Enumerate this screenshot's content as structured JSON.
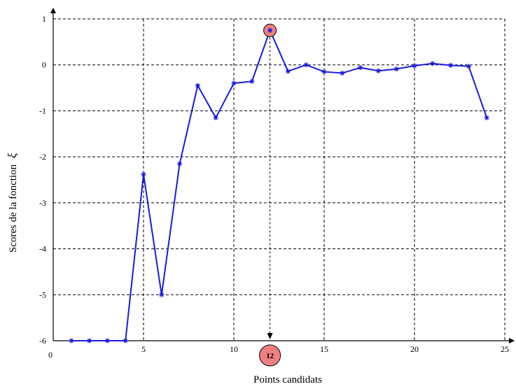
{
  "chart_data": {
    "type": "line",
    "title": "",
    "xlabel": "Points candidats",
    "ylabel": "Scores de la fonction",
    "ylabel_symbol": "ξ",
    "xlim": [
      0,
      25
    ],
    "ylim": [
      -6,
      1
    ],
    "x_ticks": [
      0,
      5,
      10,
      15,
      20,
      25
    ],
    "x_tick_labels": [
      "0",
      "5",
      "10",
      "15",
      "20",
      "25"
    ],
    "y_ticks": [
      1,
      0,
      -1,
      -2,
      -3,
      -4,
      -5,
      -6
    ],
    "y_tick_labels": [
      "1",
      "0",
      "-1",
      "-2",
      "-3",
      "-4",
      "-5",
      "-6"
    ],
    "grid": true,
    "series": [
      {
        "x": [
          1,
          2,
          3,
          4,
          5,
          6,
          7,
          8,
          9,
          10,
          11,
          12,
          13,
          14,
          15,
          16,
          17,
          18,
          19,
          20,
          21,
          22,
          23,
          24
        ],
        "y": [
          -6,
          -6,
          -6,
          -6,
          -2.38,
          -5,
          -2.15,
          -0.45,
          -1.15,
          -0.4,
          -0.36,
          0.75,
          -0.14,
          0.0,
          -0.15,
          -0.18,
          -0.06,
          -0.13,
          -0.09,
          -0.02,
          0.03,
          -0.01,
          -0.03,
          -1.15
        ],
        "color": "#1a1adf",
        "marker": "asterisk"
      }
    ],
    "annotations": [
      {
        "type": "highlight-point",
        "x": 12,
        "y": 0.75,
        "color": "#f08080"
      },
      {
        "type": "arrow-to-axis",
        "x": 12,
        "label": "12",
        "color": "#f08080"
      }
    ]
  }
}
